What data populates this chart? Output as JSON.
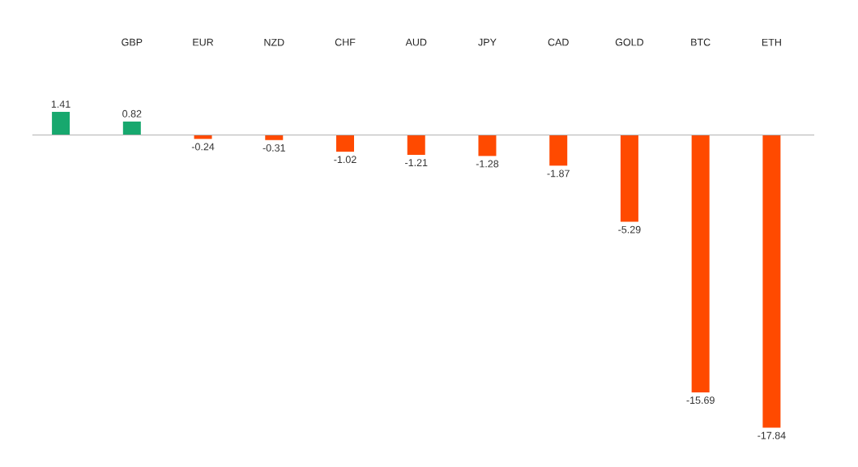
{
  "chart_data": {
    "type": "bar",
    "categories": [
      null,
      "GBP",
      "EUR",
      "NZD",
      "CHF",
      "AUD",
      "JPY",
      "CAD",
      "GOLD",
      "BTC",
      "ETH"
    ],
    "values": [
      1.41,
      0.82,
      -0.24,
      -0.31,
      -1.02,
      -1.21,
      -1.28,
      -1.87,
      -5.29,
      -15.69,
      -17.84
    ],
    "colors": [
      "#17a86e",
      "#17a86e",
      "#ff4a00",
      "#ff4a00",
      "#ff4a00",
      "#ff4a00",
      "#ff4a00",
      "#ff4a00",
      "#ff4a00",
      "#ff4a00",
      "#ff4a00"
    ],
    "data_labels": true
  }
}
